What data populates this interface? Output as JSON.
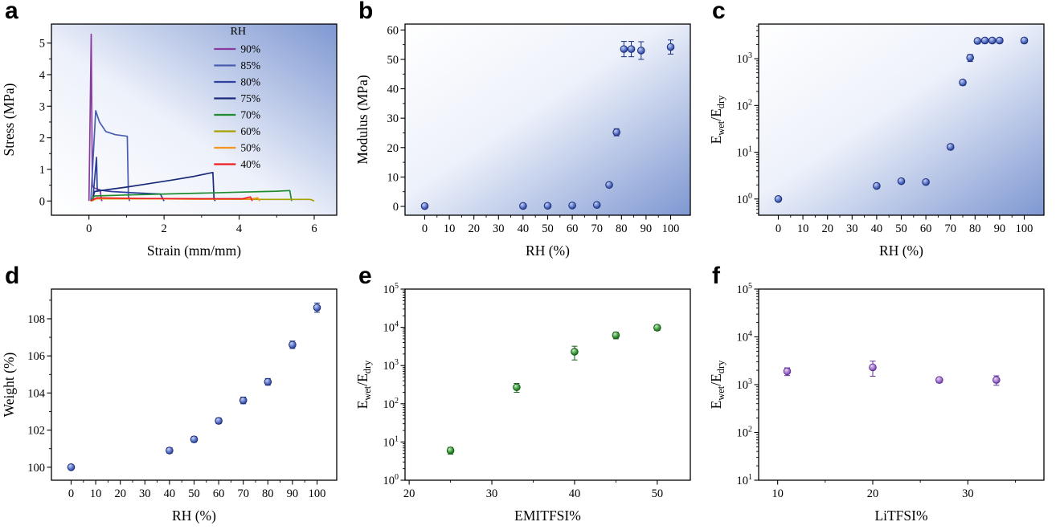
{
  "figure": {
    "panel_labels": [
      "a",
      "b",
      "c",
      "d",
      "e",
      "f"
    ]
  },
  "colors": {
    "frame": "#000000",
    "gradient_blue": "#7f98d2",
    "markers": {
      "blue": {
        "light": "#c7d2f2",
        "mid": "#5b74c9",
        "edge": "#1c2f7d"
      },
      "green": {
        "light": "#c9ecc9",
        "mid": "#3f9e3f",
        "edge": "#145c14"
      },
      "purple": {
        "light": "#e8d5f5",
        "mid": "#a678cf",
        "edge": "#5f2f96"
      }
    }
  },
  "chart_data": [
    {
      "type": "line",
      "title": "Stress-strain curves at different relative humidity",
      "xlabel": "Strain (mm/mm)",
      "ylabel": "Stress (MPa)",
      "xlim": [
        -1,
        6.6
      ],
      "ylim": [
        -0.45,
        5.6
      ],
      "xticks": [
        0,
        2,
        4,
        6
      ],
      "xminor": [
        1,
        3,
        5
      ],
      "yticks": [
        0,
        1,
        2,
        3,
        4,
        5
      ],
      "yminor": [
        0.5,
        1.5,
        2.5,
        3.5,
        4.5
      ],
      "gradient": "tr",
      "legend": {
        "title": "RH",
        "x": 0.57,
        "y": 0.0
      },
      "series": [
        {
          "name": "90%",
          "color": "#8a3a9e",
          "points": [
            [
              0,
              0
            ],
            [
              0.06,
              5.28
            ],
            [
              0.09,
              0.5
            ],
            [
              0.12,
              0.42
            ],
            [
              0.3,
              0.35
            ],
            [
              0.33,
              0.04
            ],
            [
              0.35,
              0
            ]
          ]
        },
        {
          "name": "85%",
          "color": "#4a5cb0",
          "points": [
            [
              0.05,
              0
            ],
            [
              0.18,
              2.86
            ],
            [
              0.28,
              2.5
            ],
            [
              0.45,
              2.2
            ],
            [
              0.7,
              2.1
            ],
            [
              1.02,
              2.05
            ],
            [
              1.05,
              0.15
            ],
            [
              1.08,
              0
            ]
          ]
        },
        {
          "name": "80%",
          "color": "#2f3f9e",
          "points": [
            [
              0.1,
              0
            ],
            [
              0.2,
              1.38
            ],
            [
              0.22,
              0.35
            ],
            [
              0.6,
              0.3
            ],
            [
              1.2,
              0.26
            ],
            [
              1.9,
              0.22
            ],
            [
              2.0,
              0
            ]
          ]
        },
        {
          "name": "75%",
          "color": "#1b2a78",
          "points": [
            [
              0.08,
              0
            ],
            [
              0.15,
              0.3
            ],
            [
              0.5,
              0.36
            ],
            [
              1.0,
              0.44
            ],
            [
              1.6,
              0.55
            ],
            [
              2.2,
              0.66
            ],
            [
              2.8,
              0.78
            ],
            [
              3.2,
              0.88
            ],
            [
              3.3,
              0.9
            ],
            [
              3.33,
              0.08
            ],
            [
              3.36,
              0
            ]
          ]
        },
        {
          "name": "70%",
          "color": "#1f8c2f",
          "points": [
            [
              0.05,
              0
            ],
            [
              0.15,
              0.16
            ],
            [
              1.0,
              0.19
            ],
            [
              2.0,
              0.22
            ],
            [
              3.0,
              0.25
            ],
            [
              4.0,
              0.28
            ],
            [
              5.0,
              0.31
            ],
            [
              5.35,
              0.33
            ],
            [
              5.4,
              0
            ]
          ]
        },
        {
          "name": "60%",
          "color": "#a8a000",
          "points": [
            [
              0.05,
              0
            ],
            [
              0.2,
              0.07
            ],
            [
              1.5,
              0.07
            ],
            [
              3.0,
              0.06
            ],
            [
              4.5,
              0.05
            ],
            [
              5.9,
              0.05
            ],
            [
              6.0,
              0
            ]
          ]
        },
        {
          "name": "50%",
          "color": "#f5941e",
          "points": [
            [
              0.05,
              0
            ],
            [
              0.2,
              0.08
            ],
            [
              1.5,
              0.07
            ],
            [
              3.0,
              0.06
            ],
            [
              4.3,
              0.06
            ],
            [
              4.5,
              0.1
            ],
            [
              4.55,
              0
            ]
          ]
        },
        {
          "name": "40%",
          "color": "#ee1c24",
          "points": [
            [
              0.05,
              0
            ],
            [
              0.2,
              0.1
            ],
            [
              1.5,
              0.08
            ],
            [
              3.0,
              0.07
            ],
            [
              4.1,
              0.07
            ],
            [
              4.3,
              0.13
            ],
            [
              4.35,
              0
            ]
          ]
        }
      ]
    },
    {
      "type": "scatter",
      "title": "Modulus versus relative humidity",
      "xlabel": "RH (%)",
      "ylabel": "Modulus (MPa)",
      "xlim": [
        -8,
        108
      ],
      "ylim": [
        -3,
        62
      ],
      "xticks": [
        0,
        10,
        20,
        30,
        40,
        50,
        60,
        70,
        80,
        90,
        100
      ],
      "xminor": [
        5,
        15,
        25,
        35,
        45,
        55,
        65,
        75,
        85,
        95
      ],
      "yticks": [
        0,
        10,
        20,
        30,
        40,
        50,
        60
      ],
      "yminor": [
        5,
        15,
        25,
        35,
        45,
        55
      ],
      "gradient": "br",
      "marker": "blue",
      "x": [
        0,
        40,
        50,
        60,
        70,
        75,
        78,
        81,
        84,
        88,
        100
      ],
      "y": [
        0.1,
        0.15,
        0.2,
        0.3,
        0.5,
        7.3,
        25.2,
        53.5,
        53.5,
        53.0,
        54.2
      ],
      "yerr": [
        0.2,
        0.2,
        0.2,
        0.3,
        0.3,
        0.8,
        1.2,
        2.6,
        2.6,
        3.0,
        2.4
      ]
    },
    {
      "type": "scatter",
      "title": "Wet/dry modulus ratio versus relative humidity",
      "xlabel": "RH (%)",
      "ylabel": "E_{wet}/E_{dry}",
      "xlim": [
        -8,
        108
      ],
      "yscale": "log",
      "ylim": [
        0.45,
        5500
      ],
      "xticks": [
        0,
        10,
        20,
        30,
        40,
        50,
        60,
        70,
        80,
        90,
        100
      ],
      "xminor": [
        5,
        15,
        25,
        35,
        45,
        55,
        65,
        75,
        85,
        95
      ],
      "yticks": [
        1,
        10,
        100,
        1000
      ],
      "gradient": "br",
      "marker": "blue",
      "x": [
        0,
        40,
        50,
        60,
        70,
        75,
        78,
        81,
        84,
        87,
        90,
        100
      ],
      "y": [
        1.0,
        1.9,
        2.4,
        2.3,
        13,
        310,
        1050,
        2400,
        2450,
        2450,
        2450,
        2450
      ],
      "yerr": [
        0.1,
        0.2,
        0.25,
        0.25,
        1.5,
        40,
        180,
        300,
        300,
        300,
        300,
        300
      ]
    },
    {
      "type": "scatter",
      "title": "Weight uptake versus relative humidity",
      "xlabel": "RH (%)",
      "ylabel": "Weight (%)",
      "xlim": [
        -8,
        108
      ],
      "ylim": [
        99.3,
        109.6
      ],
      "xticks": [
        0,
        10,
        20,
        30,
        40,
        50,
        60,
        70,
        80,
        90,
        100
      ],
      "xminor": [
        5,
        15,
        25,
        35,
        45,
        55,
        65,
        75,
        85,
        95
      ],
      "yticks": [
        100,
        102,
        104,
        106,
        108
      ],
      "yminor": [
        101,
        103,
        105,
        107,
        109
      ],
      "marker": "blue",
      "x": [
        0,
        40,
        50,
        60,
        70,
        80,
        90,
        100
      ],
      "y": [
        100.0,
        100.9,
        101.5,
        102.5,
        103.6,
        104.6,
        106.6,
        108.6
      ],
      "yerr": [
        0.12,
        0.15,
        0.15,
        0.15,
        0.18,
        0.18,
        0.2,
        0.25
      ]
    },
    {
      "type": "scatter",
      "title": "Wet/dry modulus ratio versus EMITFSI content",
      "xlabel": "EMITFSI%",
      "ylabel": "E_{wet}/E_{dry}",
      "xlim": [
        19.5,
        54
      ],
      "yscale": "log",
      "ylim": [
        1,
        100000
      ],
      "xticks": [
        20,
        30,
        40,
        50
      ],
      "xminor": [
        25,
        35,
        45
      ],
      "yticks": [
        1,
        10,
        100,
        1000,
        10000,
        100000
      ],
      "marker": "green",
      "x": [
        25,
        33,
        40,
        45,
        50
      ],
      "y": [
        6,
        270,
        2300,
        6200,
        9800
      ],
      "yerr": [
        1.2,
        70,
        900,
        1200,
        1500
      ]
    },
    {
      "type": "scatter",
      "title": "Wet/dry modulus ratio versus LiTFSI content",
      "xlabel": "LiTFSI%",
      "ylabel": "E_{wet}/E_{dry}",
      "xlim": [
        8,
        38
      ],
      "yscale": "log",
      "ylim": [
        10,
        100000
      ],
      "xticks": [
        10,
        20,
        30
      ],
      "xminor": [
        15,
        25,
        35
      ],
      "yticks": [
        10,
        100,
        1000,
        10000,
        100000
      ],
      "marker": "purple",
      "x": [
        11,
        20,
        27,
        33
      ],
      "y": [
        1900,
        2300,
        1250,
        1250
      ],
      "yerr": [
        350,
        800,
        150,
        280
      ]
    }
  ]
}
